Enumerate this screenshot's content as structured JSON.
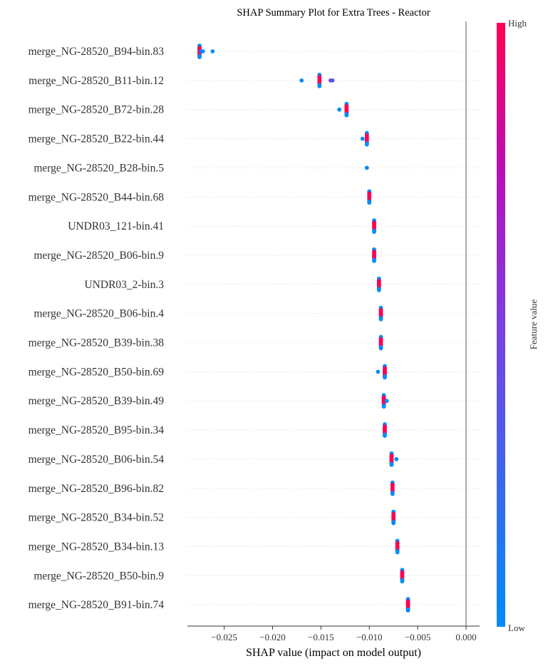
{
  "chart_data": {
    "type": "scatter",
    "title": "SHAP Summary Plot for Extra Trees - Reactor",
    "xlabel": "SHAP value (impact on model output)",
    "xlim": [
      -0.0288,
      0.0014
    ],
    "xticks": [
      -0.025,
      -0.02,
      -0.015,
      -0.01,
      -0.005,
      0.0
    ],
    "xtick_labels": [
      "−0.025",
      "−0.020",
      "−0.015",
      "−0.010",
      "−0.005",
      "0.000"
    ],
    "grid": "dotted horizontal row guides",
    "zero_line": 0.0,
    "colorbar": {
      "label": "Feature value",
      "high_label": "High",
      "low_label": "Low",
      "low_color": "#008bfb",
      "high_color": "#ff0052"
    },
    "features": [
      {
        "name": "merge_NG-28520_B94-bin.83",
        "points": [
          {
            "x": -0.02755,
            "v": 0.0
          },
          {
            "x": -0.02755,
            "v": 1.0
          },
          {
            "x": -0.0274,
            "v": 0.1
          },
          {
            "x": -0.0272,
            "v": 0.0
          },
          {
            "x": -0.0262,
            "v": 0.0
          }
        ]
      },
      {
        "name": "merge_NG-28520_B11-bin.12",
        "points": [
          {
            "x": -0.01515,
            "v": 0.0
          },
          {
            "x": -0.01515,
            "v": 1.0
          },
          {
            "x": -0.017,
            "v": 0.0
          },
          {
            "x": -0.014,
            "v": 0.6
          },
          {
            "x": -0.0138,
            "v": 0.3
          }
        ]
      },
      {
        "name": "merge_NG-28520_B72-bin.28",
        "points": [
          {
            "x": -0.01235,
            "v": 0.0
          },
          {
            "x": -0.01235,
            "v": 1.0
          },
          {
            "x": -0.0131,
            "v": 0.0
          }
        ]
      },
      {
        "name": "merge_NG-28520_B22-bin.44",
        "points": [
          {
            "x": -0.01025,
            "v": 0.0
          },
          {
            "x": -0.01025,
            "v": 1.0
          },
          {
            "x": -0.0107,
            "v": 0.0
          }
        ]
      },
      {
        "name": "merge_NG-28520_B28-bin.5",
        "points": [
          {
            "x": -0.01025,
            "v": 0.0
          }
        ]
      },
      {
        "name": "merge_NG-28520_B44-bin.68",
        "points": [
          {
            "x": -0.01,
            "v": 0.0
          },
          {
            "x": -0.01,
            "v": 1.0
          }
        ]
      },
      {
        "name": "UNDR03_121-bin.41",
        "points": [
          {
            "x": -0.0095,
            "v": 0.0
          },
          {
            "x": -0.0095,
            "v": 1.0
          }
        ]
      },
      {
        "name": "merge_NG-28520_B06-bin.9",
        "points": [
          {
            "x": -0.0095,
            "v": 0.0
          },
          {
            "x": -0.0095,
            "v": 1.0
          }
        ]
      },
      {
        "name": "UNDR03_2-bin.3",
        "points": [
          {
            "x": -0.009,
            "v": 0.0
          },
          {
            "x": -0.009,
            "v": 1.0
          }
        ]
      },
      {
        "name": "merge_NG-28520_B06-bin.4",
        "points": [
          {
            "x": -0.0088,
            "v": 0.0
          },
          {
            "x": -0.0088,
            "v": 1.0
          }
        ]
      },
      {
        "name": "merge_NG-28520_B39-bin.38",
        "points": [
          {
            "x": -0.0088,
            "v": 0.0
          },
          {
            "x": -0.0088,
            "v": 1.0
          }
        ]
      },
      {
        "name": "merge_NG-28520_B50-bin.69",
        "points": [
          {
            "x": -0.0084,
            "v": 0.0
          },
          {
            "x": -0.0084,
            "v": 1.0
          },
          {
            "x": -0.0091,
            "v": 0.0
          }
        ]
      },
      {
        "name": "merge_NG-28520_B39-bin.49",
        "points": [
          {
            "x": -0.0085,
            "v": 0.0
          },
          {
            "x": -0.0085,
            "v": 1.0
          },
          {
            "x": -0.0082,
            "v": 0.0
          }
        ]
      },
      {
        "name": "merge_NG-28520_B95-bin.34",
        "points": [
          {
            "x": -0.0084,
            "v": 0.0
          },
          {
            "x": -0.0084,
            "v": 1.0
          }
        ]
      },
      {
        "name": "merge_NG-28520_B06-bin.54",
        "points": [
          {
            "x": -0.0077,
            "v": 0.0
          },
          {
            "x": -0.0077,
            "v": 1.0
          },
          {
            "x": -0.0072,
            "v": 0.0
          }
        ]
      },
      {
        "name": "merge_NG-28520_B96-bin.82",
        "points": [
          {
            "x": -0.0076,
            "v": 0.0
          },
          {
            "x": -0.0076,
            "v": 1.0
          }
        ]
      },
      {
        "name": "merge_NG-28520_B34-bin.52",
        "points": [
          {
            "x": -0.0075,
            "v": 0.0
          },
          {
            "x": -0.0075,
            "v": 1.0
          }
        ]
      },
      {
        "name": "merge_NG-28520_B34-bin.13",
        "points": [
          {
            "x": -0.0071,
            "v": 0.0
          },
          {
            "x": -0.0071,
            "v": 1.0
          }
        ]
      },
      {
        "name": "merge_NG-28520_B50-bin.9",
        "points": [
          {
            "x": -0.0066,
            "v": 0.0
          },
          {
            "x": -0.0066,
            "v": 1.0
          }
        ]
      },
      {
        "name": "merge_NG-28520_B91-bin.74",
        "points": [
          {
            "x": -0.006,
            "v": 0.0
          },
          {
            "x": -0.006,
            "v": 1.0
          }
        ]
      }
    ]
  }
}
